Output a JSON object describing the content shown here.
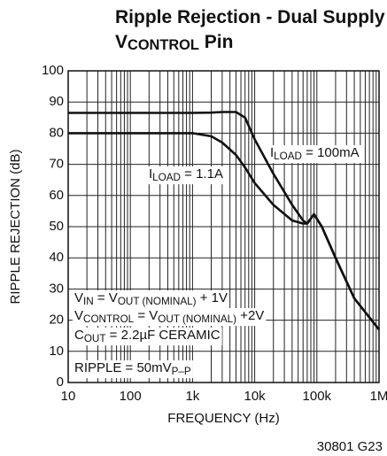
{
  "chart_data": {
    "type": "line",
    "title": [
      [
        {
          "t": "Ripple Rejection - Dual Supply -"
        }
      ],
      [
        {
          "t": "V"
        },
        {
          "sub": "CONTROL"
        },
        {
          "t": " Pin"
        }
      ]
    ],
    "x_label": "FREQUENCY (Hz)",
    "y_label": "RIPPLE REJECTION (dB)",
    "x_log": true,
    "grid": true,
    "xlim": [
      10,
      1000000
    ],
    "ylim": [
      0,
      100
    ],
    "xticks": [
      10,
      100,
      {
        "value": 1000,
        "label": "1k"
      },
      {
        "value": 10000,
        "label": "10k"
      },
      {
        "value": 100000,
        "label": "100k"
      },
      {
        "value": 1000000,
        "label": "1M"
      }
    ],
    "yticks": [
      0,
      10,
      20,
      30,
      40,
      50,
      60,
      70,
      80,
      90,
      100
    ],
    "series": [
      {
        "name": [
          {
            "t": "I"
          },
          {
            "sub": "LOAD"
          },
          {
            "t": " = 100mA"
          }
        ],
        "color": "#111111",
        "x": [
          10,
          100,
          1000,
          2000,
          3000,
          5000,
          7000,
          10000,
          20000,
          40000,
          60000,
          70000,
          90000,
          120000,
          200000,
          400000,
          1000000
        ],
        "values": [
          86.5,
          86.5,
          86.5,
          86.6,
          86.8,
          86.8,
          85,
          78,
          67,
          57,
          52,
          51,
          54,
          50,
          40,
          27,
          17
        ]
      },
      {
        "name": [
          {
            "t": "I"
          },
          {
            "sub": "LOAD"
          },
          {
            "t": " = 1.1A"
          }
        ],
        "color": "#111111",
        "x": [
          10,
          100,
          1000,
          2000,
          3000,
          5000,
          7000,
          10000,
          20000,
          40000,
          60000,
          70000,
          90000,
          120000,
          200000,
          400000,
          1000000
        ],
        "values": [
          80,
          80,
          80,
          79,
          77,
          73,
          69,
          64,
          57,
          52,
          51,
          51,
          54,
          50,
          40,
          27,
          17
        ]
      }
    ],
    "annotations": [
      [
        {
          "t": "V"
        },
        {
          "sub": "IN"
        },
        {
          "t": " = V"
        },
        {
          "sub": "OUT (NOMINAL)"
        },
        {
          "t": " + 1V"
        }
      ],
      [
        {
          "t": "V"
        },
        {
          "sub": "CONTROL"
        },
        {
          "t": " = V"
        },
        {
          "sub": "OUT (NOMINAL)"
        },
        {
          "t": " +2V"
        }
      ],
      [
        {
          "t": "C"
        },
        {
          "sub": "OUT"
        },
        {
          "t": " = 2.2µF CERAMIC"
        }
      ],
      [
        {
          "t": "RIPPLE = 50mV"
        },
        {
          "sub": "P–P"
        }
      ]
    ],
    "footnote": "30801 G23"
  }
}
